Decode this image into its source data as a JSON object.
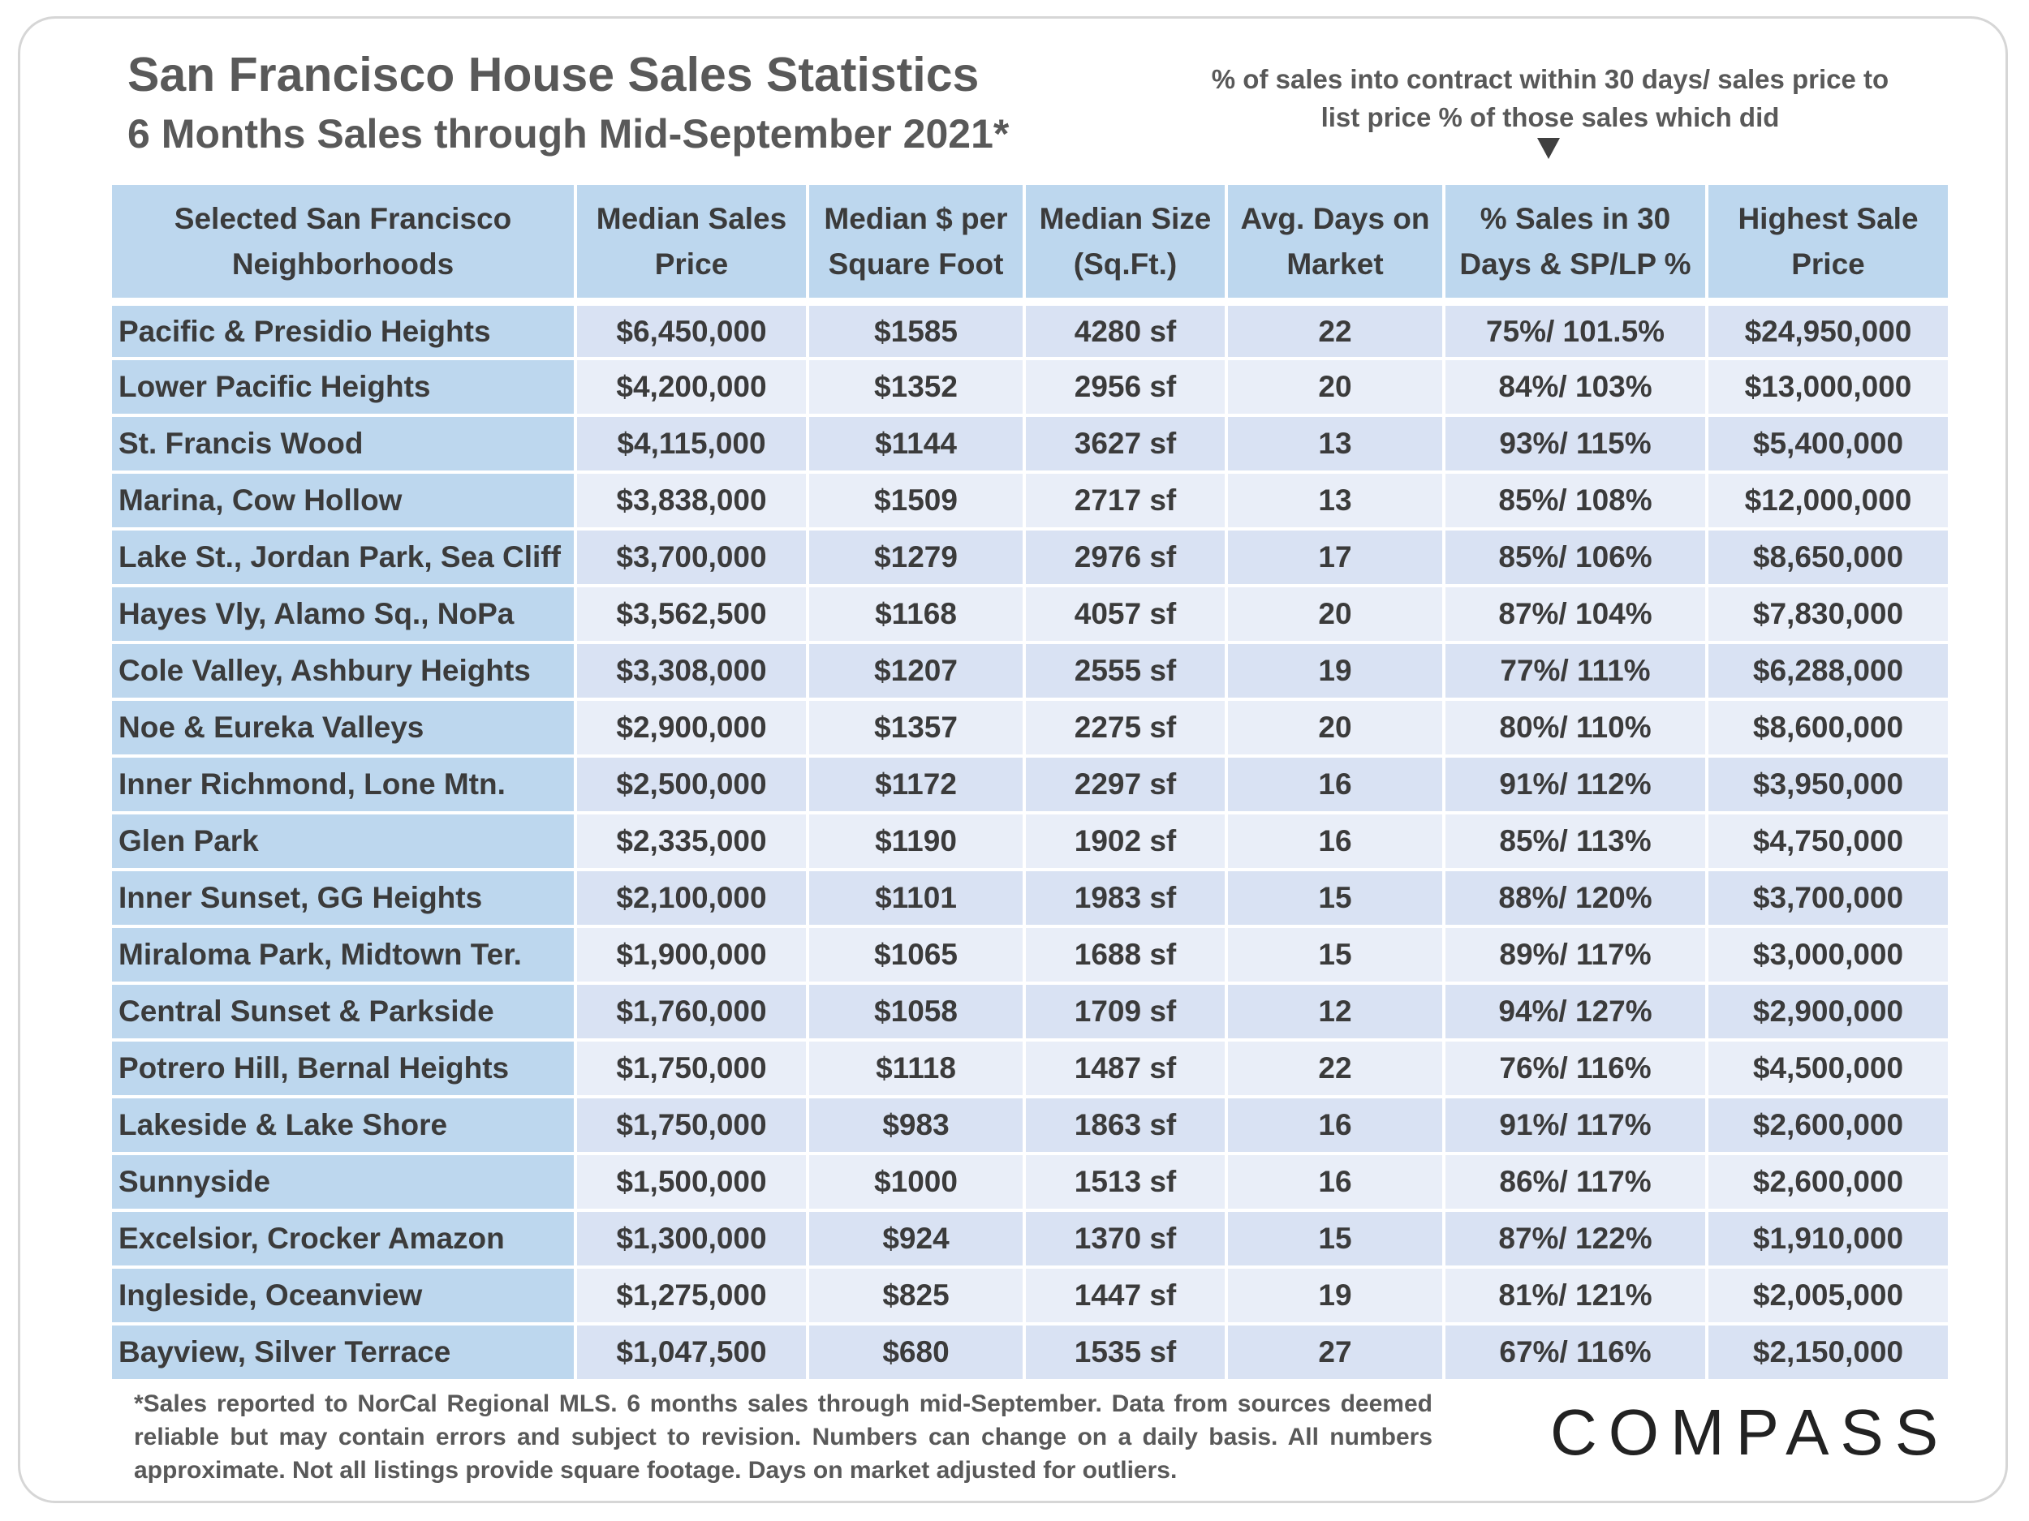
{
  "header": {
    "title": "San Francisco House Sales Statistics",
    "subtitle": "6 Months Sales through Mid-September 2021*",
    "note": "% of sales into contract within 30 days/ sales price to list price % of those sales which did"
  },
  "table": {
    "columns": [
      "Selected San Francisco Neighborhoods",
      "Median Sales Price",
      "Median $ per Square Foot",
      "Median Size (Sq.Ft.)",
      "Avg. Days on Market",
      "% Sales in 30 Days & SP/LP %",
      "Highest Sale Price"
    ],
    "rows": [
      [
        "Pacific & Presidio Heights",
        "$6,450,000",
        "$1585",
        "4280 sf",
        "22",
        "75%/ 101.5%",
        "$24,950,000"
      ],
      [
        "Lower Pacific Heights",
        "$4,200,000",
        "$1352",
        "2956 sf",
        "20",
        "84%/ 103%",
        "$13,000,000"
      ],
      [
        "St. Francis Wood",
        "$4,115,000",
        "$1144",
        "3627 sf",
        "13",
        "93%/ 115%",
        "$5,400,000"
      ],
      [
        "Marina, Cow Hollow",
        "$3,838,000",
        "$1509",
        "2717 sf",
        "13",
        "85%/ 108%",
        "$12,000,000"
      ],
      [
        "Lake St., Jordan Park, Sea Cliff",
        "$3,700,000",
        "$1279",
        "2976 sf",
        "17",
        "85%/ 106%",
        "$8,650,000"
      ],
      [
        "Hayes Vly, Alamo Sq., NoPa",
        "$3,562,500",
        "$1168",
        "4057 sf",
        "20",
        "87%/ 104%",
        "$7,830,000"
      ],
      [
        "Cole Valley, Ashbury Heights",
        "$3,308,000",
        "$1207",
        "2555 sf",
        "19",
        "77%/ 111%",
        "$6,288,000"
      ],
      [
        "Noe & Eureka Valleys",
        "$2,900,000",
        "$1357",
        "2275 sf",
        "20",
        "80%/ 110%",
        "$8,600,000"
      ],
      [
        "Inner Richmond, Lone Mtn.",
        "$2,500,000",
        "$1172",
        "2297 sf",
        "16",
        "91%/ 112%",
        "$3,950,000"
      ],
      [
        "Glen Park",
        "$2,335,000",
        "$1190",
        "1902 sf",
        "16",
        "85%/ 113%",
        "$4,750,000"
      ],
      [
        "Inner Sunset, GG Heights",
        "$2,100,000",
        "$1101",
        "1983 sf",
        "15",
        "88%/ 120%",
        "$3,700,000"
      ],
      [
        "Miraloma Park, Midtown Ter.",
        "$1,900,000",
        "$1065",
        "1688 sf",
        "15",
        "89%/ 117%",
        "$3,000,000"
      ],
      [
        "Central Sunset & Parkside",
        "$1,760,000",
        "$1058",
        "1709 sf",
        "12",
        "94%/ 127%",
        "$2,900,000"
      ],
      [
        "Potrero Hill, Bernal Heights",
        "$1,750,000",
        "$1118",
        "1487 sf",
        "22",
        "76%/ 116%",
        "$4,500,000"
      ],
      [
        "Lakeside & Lake Shore",
        "$1,750,000",
        "$983",
        "1863 sf",
        "16",
        "91%/ 117%",
        "$2,600,000"
      ],
      [
        "Sunnyside",
        "$1,500,000",
        "$1000",
        "1513 sf",
        "16",
        "86%/ 117%",
        "$2,600,000"
      ],
      [
        "Excelsior, Crocker Amazon",
        "$1,300,000",
        "$924",
        "1370 sf",
        "15",
        "87%/ 122%",
        "$1,910,000"
      ],
      [
        "Ingleside, Oceanview",
        "$1,275,000",
        "$825",
        "1447 sf",
        "19",
        "81%/ 121%",
        "$2,005,000"
      ],
      [
        "Bayview, Silver Terrace",
        "$1,047,500",
        "$680",
        "1535 sf",
        "27",
        "67%/ 116%",
        "$2,150,000"
      ]
    ]
  },
  "footer": {
    "footnote": "*Sales reported to NorCal Regional MLS. 6 months sales through mid-September. Data from sources deemed reliable but may contain errors and subject to revision. Numbers can change on a daily basis. All numbers approximate. Not all listings provide square footage. Days on market adjusted for outliers.",
    "logo": "COMPASS"
  },
  "colors": {
    "header_fill": "#bdd7ee",
    "row_fill_a": "#d9e2f3",
    "row_fill_b": "#e9eef8",
    "text": "#3b3b3b"
  },
  "icons": {
    "note_pointer": "down-triangle-icon"
  }
}
